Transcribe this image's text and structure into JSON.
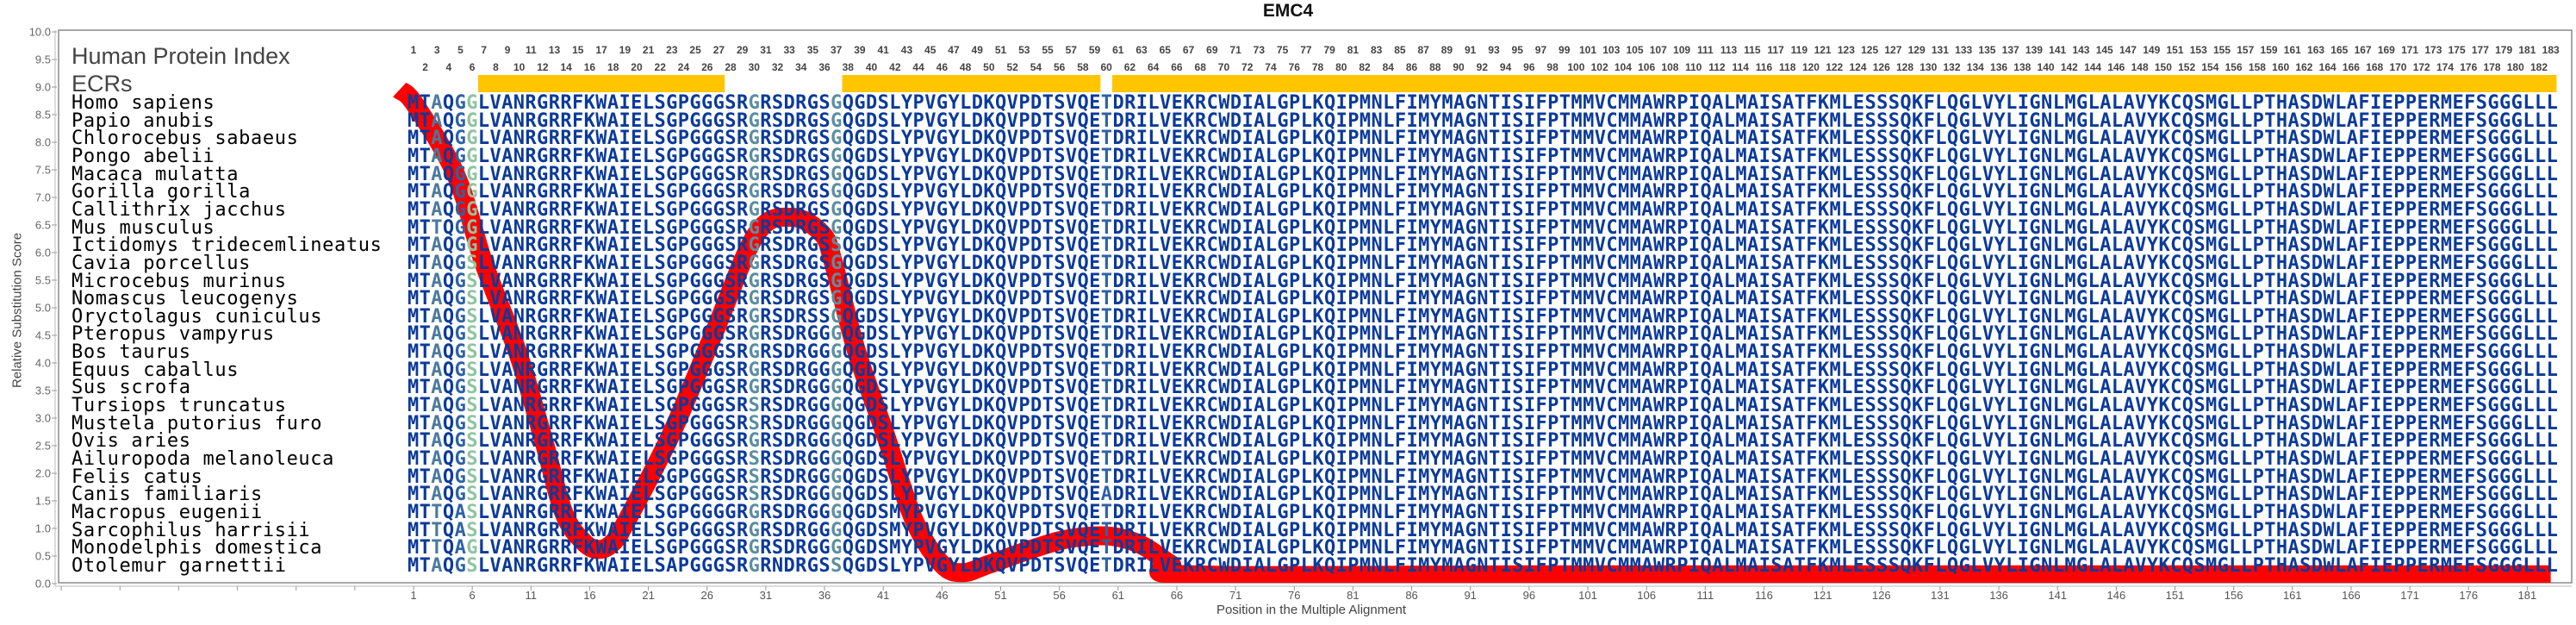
{
  "chart_data": {
    "type": "line",
    "title": "EMC4",
    "xlabel": "Position in the Multiple Alignment",
    "ylabel": "Relative Substitution Score",
    "ylim": [
      0,
      10
    ],
    "xlim": [
      1,
      183
    ],
    "grid": false,
    "yticks": [
      "0.0",
      "0.5",
      "1.0",
      "1.5",
      "2.0",
      "2.5",
      "3.0",
      "3.5",
      "4.0",
      "4.5",
      "5.0",
      "5.5",
      "6.0",
      "6.5",
      "7.0",
      "7.5",
      "8.0",
      "8.5",
      "9.0",
      "9.5",
      "10.0"
    ],
    "xticks": [
      1,
      6,
      11,
      16,
      21,
      26,
      31,
      36,
      41,
      46,
      51,
      56,
      61,
      66,
      71,
      76,
      81,
      86,
      91,
      96,
      101,
      106,
      111,
      116,
      121,
      126,
      131,
      136,
      141,
      146,
      151,
      156,
      161,
      166,
      171,
      176,
      181
    ],
    "series": [
      {
        "name": "Relative Substitution Score",
        "color": "#ff0000",
        "x": [
          -0.2,
          1.1,
          4.6,
          7.0,
          9.9,
          12.1,
          13.8,
          15.5,
          16.8,
          18.0,
          19.2,
          22.9,
          26.6,
          30.2,
          33.2,
          35.8,
          36.8,
          38.7,
          41.2,
          43.6,
          46.0,
          47.8,
          50.0,
          54.0,
          57.0,
          60.3,
          63.0,
          65.5,
          67.4,
          100,
          183
        ],
        "y": [
          8.95,
          8.69,
          7.41,
          5.8,
          4.17,
          2.58,
          1.28,
          0.75,
          0.62,
          0.75,
          1.16,
          2.69,
          4.55,
          6.34,
          6.64,
          6.34,
          5.78,
          4.23,
          2.69,
          1.16,
          0.35,
          0.2,
          0.35,
          0.65,
          0.82,
          0.86,
          0.7,
          0.35,
          0.16,
          0.16,
          0.16
        ]
      }
    ]
  },
  "labels": {
    "human_protein_index": "Human Protein Index",
    "ecrs": "ECRs"
  },
  "ecrs": {
    "color": "#ffc600",
    "ranges": [
      [
        7,
        27
      ],
      [
        38,
        59
      ],
      [
        61,
        183
      ]
    ]
  },
  "alignment": {
    "length": 183,
    "default_color": "#0b3a9a",
    "column_colors": {
      "3": "#4a7a9e",
      "5": "#2e62a5",
      "6": "#8fc49f",
      "30": "#5b8ea0",
      "37": "#5b8ea0",
      "60": "#2e62a5"
    },
    "species": [
      {
        "name": "Homo sapiens",
        "sequence": "MTAQGGLVANRGRRFKWAIELSGPGGGSRGRSDRGSGQGDSLYPVGYLDKQVPDTSVQETDRILVEKRCWDIALGPLKQIPMNLFIMYMAGNTISIFPTMMVCMMAWRPIQALMAISATFKMLESSSQKFLQGLVYLIGNLMGLALAVYKCQSMGLLPTHASDWLAFIEPPERMEFSGGGLLL"
      },
      {
        "name": "Papio anubis",
        "sequence": "MTAQGGLVANRGRRFKWAIELSGPGGGSRGRSDRGSGQGDSLYPVGYLDKQVPDTSVQETDRILVEKRCWDIALGPLKQIPMNLFIMYMAGNTISIFPTMMVCMMAWRPIQALMAISATFKMLESSSQKFLQGLVYLIGNLMGLALAVYKCQSMGLLPTHASDWLAFIEPPERMEFSGGGLLL"
      },
      {
        "name": "Chlorocebus sabaeus",
        "sequence": "MTAQGGLVANRGRRFKWAIELSGPGGGSRGRSDRGSGQGDSLYPVGYLDKQVPDTSVQETDRILVEKRCWDIALGPLKQIPMNLFIMYMAGNTISIFPTMMVCMMAWRPIQALMAISATFKMLESSSQKFLQGLVYLIGNLMGLALAVYKCQSMGLLPTHASDWLAFIEPPERMEFSGGGLLL"
      },
      {
        "name": "Pongo abelii",
        "sequence": "MTAQGGLVANRGRRFKWAIELSGPGGGSRGRSDRGSGQGDSLYPVGYLDKQVPDTSVQETDRILVEKRCWDIALGPLKQIPMNLFIMYMAGNTISIFPTMMVCMMAWRPIQALMAISATFKMLESSSQKFLQGLVYLIGNLMGLALAVYKCQSMGLLPTHASDWLAFIEPPERMEFSGGGLLL"
      },
      {
        "name": "Macaca mulatta",
        "sequence": "MTAQGGLVANRGRRFKWAIELSGPGGGSRGRSDRGSGQGDSLYPVGYLDKQVPDTSVQETDRILVEKRCWDIALGPLKQIPMNLFIMYMAGNTISIFPTMMVCMMAWRPIQALMAISATFKMLESSSQKFLQGLVYLIGNLMGLALAVYKCQSMGLLPTHASDWLAFIEPPERMEFSGGGLLL"
      },
      {
        "name": "Gorilla gorilla",
        "sequence": "MTAQGGLVANRGRRFKWAIELSGPGGGSRGRSDRGSGQGDSLYPVGYLDKQVPDTSVQETDRILVEKRCWDIALGPLKQIPMNLFIMYMAGNTISIFPTMMVCMMAWRPIQALMAISATFKMLESSSQKFLQGLVYLIGNLMGLALAVYKCQSMGLLPTHASDWLAFIEPPERMEFSGGGLLL"
      },
      {
        "name": "Callithrix jacchus",
        "sequence": "MTAQGGLVANRGRRFKWAIELSGPGGGSRGRSDRGSGQGDSLYPVGYLDKQVPDTSVQETDRILVEKRCWDIALGPLKQIPMNLFIMYMAGNTISIFPTMMVCMMAWRPIQALMAISATFKMLESSSQKFLQGLVYLIGNLMGLALAVYKCQSMGLLPTHASDWLAFIEPPERMEFSGGGLLL"
      },
      {
        "name": "Mus musculus",
        "sequence": "MTTQGGLVANRGRRFKWAIELSGPGGGSRGRSDRGSGQGDSLYPVGYLDKQVPDTSVQETDRILVEKRCWDIALGPLKQIPMNLFIMYMAGNTISIFPTMMVCMMAWRPIQALMAISATFKMLESSSQKFLQGLVYLIGNLMGLALAVYKCQSMGLLPTHASDWLAFIEPPERMEFSGGGLLL"
      },
      {
        "name": "Ictidomys tridecemlineatus",
        "sequence": "MTAQGGLVANRGRRFKWAIELSGPGGGSRGRSDRGSSQGDSLYPVGYLDKQVPDTSVQETDRILVEKRCWDIALGPLKQIPMNLFIMYMAGNTISIFPTMMVCMMAWRPIQALMAISATFKMLESSSQKFLQGLVYLIGNLMGLALAVYKCQSMGLLPTHASDWLAFIEPPERMEFSGGGLLL"
      },
      {
        "name": "Cavia porcellus",
        "sequence": "MTAQGSLVANRGRRFKWAIELSGPGGGSRGRSDRGSGQGDSLYPVGYLDKQVPDTSVQETDRILVEKRCWDIALGPLKQIPMNLFIMYMAGNTISIFPTMMVCMMAWRPIQALMAISATFKMLESSSQKFLQGLVYLIGNLMGLALAVYKCQSMGLLPTHASDWLAFIEPPERMEFSGGGLLL"
      },
      {
        "name": "Microcebus murinus",
        "sequence": "MTAQGSLVANRGRRFKWAIELSGPGGGSRGRSDRGSGQGDSLYPVGYLDKQVPDTSVQETDRILVEKRCWDIALGPLKQIPMNLFIMYMAGNTISIFPTMMVCMMAWRPIQALMAISATFKMLESSSQKFLQGLVYLIGNLMGLALAVYKCQSMGLLPTHASDWLAFIEPPERMEFSGGGLLL"
      },
      {
        "name": "Nomascus leucogenys",
        "sequence": "MTAQGSLVANRGRRFKWAIELSGPGGGSRGRSDRGSGQGDSLYPVGYLDKQVPDTSVQETDRILVEKRCWDIALGPLKQIPMNLFIMYMAGNTISIFPTMMVCMMAWRPIQALMAISATFKMLESSSQKFLQGLVYLIGNLMGLALAVYKCQSMGLLPTHASDWLAFIEPPERMEFSGGGLLL"
      },
      {
        "name": "Oryctolagus cuniculus",
        "sequence": "MTAQGSLVANRGRRFKWAIELSGPGGGSRGRSDRSSGQGDSLYPVGYLDKQVPDTSVQETDRILVEKRCWDIALGPLKQIPMNLFIMYMAGNTISIFPTMMVCMMAWRPIQALMAISATFKMLESSSQKFLQGLVYLIGNLMGLALAVYKCQSMGLLPTHASDWLAFIEPPERMEFSGGGLLL"
      },
      {
        "name": "Pteropus vampyrus",
        "sequence": "MTAQGSLVANRGRRFKWAIELSGPGGGSRGRSDRGGGQGDSLYPVGYLDKQVPDTSVQETDRILVEKRCWDIALGPLKQIPMNLFIMYMAGNTISIFPTMMVCMMAWRPIQALMAISATFKMLESSSQKFLQGLVYLIGNLMGLALAVYKCQSMGLLPTHASDWLAFIEPPERMEFSGGGLLL"
      },
      {
        "name": "Bos taurus",
        "sequence": "MTAQGSLVANRGRRFKWAIELSGPGGGSRGRSDRGGGQGDSLYPVGYLDKQVPDTSVQETDRILVEKRCWDIALGPLKQIPMNLFIMYMAGNTISIFPTMMVCMMAWRPIQALMAISATFKMLESSSQKFLQGLVYLIGNLMGLALAVYKCQSMGLLPTHASDWLAFIEPPERMEFSGGGLLL"
      },
      {
        "name": "Equus caballus",
        "sequence": "MTAQGSLVANRGRRFKWAIELSGPGGGSRGRSDRGGGQGDSLYPVGYLDKQVPDTSVQETDRILVEKRCWDIALGPLKQIPMNLFIMYMAGNTISIFPTMMVCMMAWRPIQALMAISATFKMLESSSQKFLQGLVYLIGNLMGLALAVYKCQSMGLLPTHASDWLAFIEPPERMEFSGGGLLL"
      },
      {
        "name": "Sus scrofa",
        "sequence": "MTAQGSLVANRGRRFKWAIELSGPGGGSRGRSDRGGGQGDSLYPVGYLDKQVPDTSVQETDRILVEKRCWDIALGPLKQIPMNLFIMYMAGNTISIFPTMMVCMMAWRPIQALMAISATFKMLESSSQKFLQGLVYLIGNLMGLALAVYKCQSMGLLPTHASDWLAFIEPPERMEFSGGGLLL"
      },
      {
        "name": "Tursiops truncatus",
        "sequence": "MTAQGSLVANRGRRFKWAIELSGPGGGSRSRSDRGGGQGDSLYPVGYLDKQVPDTSVQETDRILVEKRCWDIALGPLKQIPMNLFIMYMAGNTISIFPTMMVCMMAWRPIQALMAISATFKMLESSSQKFLQGLVYLIGNLMGLALAVYKCQSMGLLPTHASDWLAFIEPPERMEFSGGGLLL"
      },
      {
        "name": "Mustela putorius furo",
        "sequence": "MTAQGSLVANRGRRFKWAIELSGPGGGSRSRSDRGGGQGDSLYPVGYLDKQVPDTSVQETDRILVEKRCWDIALGPLKQIPMNLFIMYMAGNTISIFPTMMVCMMAWRPIQALMAISATFKMLESSSQKFLQGLVYLIGNLMGLALAVYKCQSMGLLPTHASDWLAFIEPPERMEFSGGGLLL"
      },
      {
        "name": "Ovis aries",
        "sequence": "MTAQGSLVANRGRRFKWAIELSGPGGGSRGRSDRGGGQGDSLYPVGYLDKQVPDTSVQETDRILVEKRCWDIALGPLKQIPMNLFIMYMAGNTISIFPTMMVCMMAWRPIQALMAISATFKMLESSSQKFLQGLVYLIGNLMGLALAVYKCQSMGLLPTHASDWLAFIEPPERMEFSGGGLLL"
      },
      {
        "name": "Ailuropoda melanoleuca",
        "sequence": "MTAQGSLVANRGRRFKWAIELSGPGGGSRSRSDRGGGQGDSLYPVGYLDKQVPDTSVQETDRILVEKRCWDIALGPLKQIPMNLFIMYMAGNTISIFPTMMVCMMAWRPIQALMAISATFKMLESSSQKFLQGLVYLIGNLMGLALAVYKCQSMGLLPTHASDWLAFIEPPERMEFSGGGLLL"
      },
      {
        "name": "Felis catus",
        "sequence": "MTAQGSLVANRGRRFKWAIELSGPGGGSRSRSDRGGGQGDSLYPVGYLDKQVPDTSVQETDRILVEKRCWDIALGPLKQIPMNLFIMYMAGNTISIFPTMMVCMMAWRPIQALMAISATFKMLESSSQKFLQGLVYLIGNLMGLALAVYKCQSMGLLPTHASDWLAFIEPPERMEFSGGGLLL"
      },
      {
        "name": "Canis familiaris",
        "sequence": "MTAQGSLVANRGRRFKWAIELSGPGGGSRSRSDRGGGQGDSLYPVGYLDKQVPDTSVQEADRILVEKRCWDIALGPLKQIPMNLFIMYMAGNTISIFPTMMVCMMAWRPIQALMAISATFKMLESSSQKFLQGLVYLIGNLMGLALAVYKCQSMGLLPTHASDWLAFIEPPERMEFSGGGLLL"
      },
      {
        "name": "Macropus eugenii",
        "sequence": "MTTQASLVANRGRRFKWAIELSGPGGGGRGRSDRGGGQGDSMYPVGYLDKQVPDTSVQETDRILVEKRCWDIALGPLKQIPMNLFIMYMAGNTISIFPTMMVCMMAWRPIQALMAISATFKMLESSSQKFLQGLVYLIGNLMGLALAVYKCQSMGLLPTHASDWLAFIEPPERMEFSGGGLLL"
      },
      {
        "name": "Sarcophilus harrisii",
        "sequence": "MTTQASLVANRGRRFKWAIELSGPGGGSRGRSDRGGGQGDSMYPVGYLDKQVPDTSVQETDRILVEKRCWDIALGPLKQIPMNLFIMYMAGNTISIFPTMMVCMMAWRPIQALMAISATFKMLESSSQKFLQGLVYLIGNLMGLALAVYKCQSMGLLPTHASDWLAFIEPPERMEFSGGGLLL"
      },
      {
        "name": "Monodelphis domestica",
        "sequence": "MTTQAGLVANRGRRFKWAIELSGPGGGSRGRSDRGGGQGDSMYPVGYLDKQVPDTSVQETDRILVEKRCWDIALGPLKQIPMNLFIMYMAGNTISIFPTMMVCMMAWRPIQALMAISATFKMLESSSQKFLQGLVYLIGNLMGLALAVYKCQSMGLLPTHASDWLAFIEPPERMEFSGGGLLL"
      },
      {
        "name": "Otolemur garnettii",
        "sequence": "MTAQGSLVANRGRRFKWAIELSAPGGGSRGRNDRGSSQGDSLYPVGYLDKQVPDTSVQETDRILVEKRCWDIALGPLKQIPMNLFIMYMAGNTISIFPTMMVCMMAWRPIQALMAISATFKMLESSSQKFLQGLVYLIGNLMGLALAVYKCQSMGLLPTHASDWLAFIEPPERMEFSGGGLLL"
      }
    ]
  }
}
